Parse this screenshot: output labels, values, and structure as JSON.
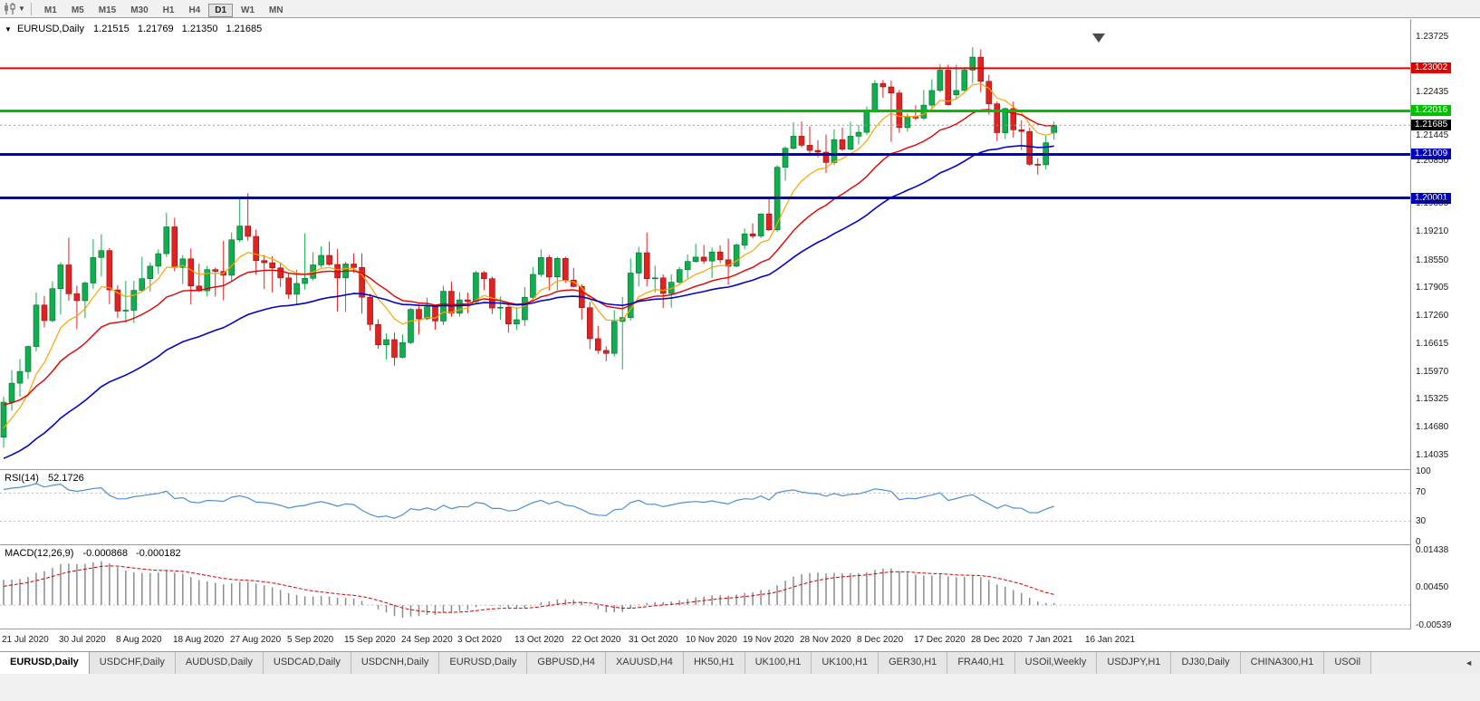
{
  "toolbar": {
    "timeframes": [
      "M1",
      "M5",
      "M15",
      "M30",
      "H1",
      "H4",
      "D1",
      "W1",
      "MN"
    ],
    "active_timeframe": "D1"
  },
  "chart_header": {
    "collapse_icon": "▼",
    "symbol": "EURUSD,Daily",
    "open": "1.21515",
    "high": "1.21769",
    "low": "1.21350",
    "close": "1.21685"
  },
  "price_axis": {
    "tick_labels": [
      "1.23725",
      "1.22435",
      "1.21445",
      "1.20850",
      "1.19855",
      "1.19210",
      "1.18550",
      "1.17905",
      "1.17260",
      "1.16615",
      "1.15970",
      "1.15325",
      "1.14680",
      "1.14035"
    ]
  },
  "rsi_pane": {
    "title": "RSI(14)",
    "value": "52.1726",
    "period": 14,
    "axis_labels": [
      "100",
      "70",
      "30",
      "0"
    ],
    "guide_levels": [
      70,
      30
    ],
    "line_color": "#4f8fd0",
    "ylim": [
      0,
      100
    ]
  },
  "macd_pane": {
    "title": "MACD(12,26,9)",
    "macd_value": "-0.000868",
    "signal_value": "-0.000182",
    "axis_labels": [
      "0.01438",
      "0.00450",
      "-0.00539"
    ],
    "hist_color": "#8c8c8c",
    "signal_color": "#d00000",
    "fast_period": 12,
    "slow_period": 26,
    "signal_period": 9,
    "fast_seed": 1.15,
    "slow_seed": 1.143,
    "signal_seed": 0.0045,
    "ylim": [
      -0.0062,
      0.0158
    ]
  },
  "date_axis": {
    "labels": [
      "21 Jul 2020",
      "30 Jul 2020",
      "8 Aug 2020",
      "18 Aug 2020",
      "27 Aug 2020",
      "5 Sep 2020",
      "15 Sep 2020",
      "24 Sep 2020",
      "3 Oct 2020",
      "13 Oct 2020",
      "22 Oct 2020",
      "31 Oct 2020",
      "10 Nov 2020",
      "19 Nov 2020",
      "28 Nov 2020",
      "8 Dec 2020",
      "17 Dec 2020",
      "28 Dec 2020",
      "7 Jan 2021",
      "16 Jan 2021"
    ]
  },
  "tab_bar": {
    "scroll_left_icon": "◄",
    "tabs": [
      {
        "label": "EURUSD,Daily",
        "active": true
      },
      {
        "label": "USDCHF,Daily",
        "active": false
      },
      {
        "label": "AUDUSD,Daily",
        "active": false
      },
      {
        "label": "USDCAD,Daily",
        "active": false
      },
      {
        "label": "USDCNH,Daily",
        "active": false
      },
      {
        "label": "EURUSD,Daily",
        "active": false
      },
      {
        "label": "GBPUSD,H4",
        "active": false
      },
      {
        "label": "XAUUSD,H4",
        "active": false
      },
      {
        "label": "HK50,H1",
        "active": false
      },
      {
        "label": "UK100,H1",
        "active": false
      },
      {
        "label": "UK100,H1",
        "active": false
      },
      {
        "label": "GER30,H1",
        "active": false
      },
      {
        "label": "FRA40,H1",
        "active": false
      },
      {
        "label": "USOil,Weekly",
        "active": false
      },
      {
        "label": "USDJPY,H1",
        "active": false
      },
      {
        "label": "DJ30,Daily",
        "active": false
      },
      {
        "label": "CHINA300,H1",
        "active": false
      },
      {
        "label": "USOil",
        "active": false
      }
    ]
  },
  "chart_data": {
    "type": "candlestick",
    "symbol": "EURUSD",
    "timeframe": "Daily",
    "ylim": [
      1.1372,
      1.24144
    ],
    "colors": {
      "bull": "#0fae4e",
      "bear": "#e22121",
      "bull_border": "#056a2e",
      "bear_border": "#8f0f0f"
    },
    "levels": [
      {
        "label": "1.23002",
        "price": 1.23002,
        "color": "#e00000",
        "line_width": 2,
        "kind": "resistance"
      },
      {
        "label": "1.22016",
        "price": 1.22016,
        "color": "#00bf00",
        "line_width": 3,
        "kind": "resistance2"
      },
      {
        "label": "1.21685",
        "price": 1.21685,
        "color": "#000000",
        "line_width": 1,
        "kind": "bid-price"
      },
      {
        "label": "1.21009",
        "price": 1.21009,
        "color": "#0000c0",
        "line_width": 3,
        "kind": "support"
      },
      {
        "label": "1.20001",
        "price": 1.20001,
        "color": "#0000c0",
        "line_width": 3,
        "kind": "support2"
      }
    ],
    "moving_averages": [
      {
        "name": "fast-ma",
        "period": 8,
        "seed": 1.145,
        "color": "#ffa200",
        "width": 1.2
      },
      {
        "name": "medium-ma",
        "period": 20,
        "seed": 1.152,
        "color": "#e00000",
        "width": 1.4
      },
      {
        "name": "slow-ma",
        "period": 40,
        "seed": 1.139,
        "color": "#0202c8",
        "width": 1.6
      }
    ],
    "x_label_interval": 7,
    "dates": [
      "2020-07-21",
      "2020-07-22",
      "2020-07-23",
      "2020-07-24",
      "2020-07-27",
      "2020-07-28",
      "2020-07-29",
      "2020-07-30",
      "2020-07-31",
      "2020-08-03",
      "2020-08-04",
      "2020-08-05",
      "2020-08-06",
      "2020-08-07",
      "2020-08-10",
      "2020-08-11",
      "2020-08-12",
      "2020-08-13",
      "2020-08-14",
      "2020-08-17",
      "2020-08-18",
      "2020-08-19",
      "2020-08-20",
      "2020-08-21",
      "2020-08-24",
      "2020-08-25",
      "2020-08-26",
      "2020-08-27",
      "2020-08-28",
      "2020-08-31",
      "2020-09-01",
      "2020-09-02",
      "2020-09-03",
      "2020-09-04",
      "2020-09-07",
      "2020-09-08",
      "2020-09-09",
      "2020-09-10",
      "2020-09-11",
      "2020-09-14",
      "2020-09-15",
      "2020-09-16",
      "2020-09-17",
      "2020-09-18",
      "2020-09-21",
      "2020-09-22",
      "2020-09-23",
      "2020-09-24",
      "2020-09-25",
      "2020-09-28",
      "2020-09-29",
      "2020-09-30",
      "2020-10-01",
      "2020-10-02",
      "2020-10-05",
      "2020-10-06",
      "2020-10-07",
      "2020-10-08",
      "2020-10-09",
      "2020-10-12",
      "2020-10-13",
      "2020-10-14",
      "2020-10-15",
      "2020-10-16",
      "2020-10-19",
      "2020-10-20",
      "2020-10-21",
      "2020-10-22",
      "2020-10-23",
      "2020-10-26",
      "2020-10-27",
      "2020-10-28",
      "2020-10-29",
      "2020-10-30",
      "2020-11-02",
      "2020-11-03",
      "2020-11-04",
      "2020-11-05",
      "2020-11-06",
      "2020-11-09",
      "2020-11-10",
      "2020-11-11",
      "2020-11-12",
      "2020-11-13",
      "2020-11-16",
      "2020-11-17",
      "2020-11-18",
      "2020-11-19",
      "2020-11-20",
      "2020-11-23",
      "2020-11-24",
      "2020-11-25",
      "2020-11-26",
      "2020-11-27",
      "2020-11-30",
      "2020-12-01",
      "2020-12-02",
      "2020-12-03",
      "2020-12-04",
      "2020-12-07",
      "2020-12-08",
      "2020-12-09",
      "2020-12-10",
      "2020-12-11",
      "2020-12-14",
      "2020-12-15",
      "2020-12-16",
      "2020-12-17",
      "2020-12-18",
      "2020-12-21",
      "2020-12-22",
      "2020-12-23",
      "2020-12-24",
      "2020-12-28",
      "2020-12-29",
      "2020-12-30",
      "2020-12-31",
      "2021-01-04",
      "2021-01-05",
      "2021-01-06",
      "2021-01-07",
      "2021-01-08",
      "2021-01-11",
      "2021-01-12",
      "2021-01-13",
      "2021-01-14",
      "2021-01-15",
      "2021-01-18",
      "2021-01-19",
      "2021-01-20"
    ],
    "candles": [
      [
        1.1446,
        1.154,
        1.1422,
        1.1527
      ],
      [
        1.1527,
        1.1601,
        1.1507,
        1.1571
      ],
      [
        1.1571,
        1.1627,
        1.154,
        1.1598
      ],
      [
        1.1598,
        1.1658,
        1.1581,
        1.1656
      ],
      [
        1.1656,
        1.1781,
        1.1644,
        1.1752
      ],
      [
        1.1752,
        1.1773,
        1.17,
        1.1716
      ],
      [
        1.1716,
        1.1807,
        1.1712,
        1.179
      ],
      [
        1.179,
        1.1851,
        1.173,
        1.1845
      ],
      [
        1.1845,
        1.1908,
        1.1762,
        1.1778
      ],
      [
        1.1778,
        1.1797,
        1.1696,
        1.1762
      ],
      [
        1.1762,
        1.1807,
        1.1722,
        1.1803
      ],
      [
        1.1803,
        1.1905,
        1.179,
        1.1862
      ],
      [
        1.1862,
        1.1916,
        1.1818,
        1.1878
      ],
      [
        1.1878,
        1.1884,
        1.1754,
        1.1787
      ],
      [
        1.1787,
        1.1798,
        1.1722,
        1.1738
      ],
      [
        1.1738,
        1.1808,
        1.1711,
        1.174
      ],
      [
        1.174,
        1.1808,
        1.171,
        1.1786
      ],
      [
        1.1786,
        1.1864,
        1.1782,
        1.1813
      ],
      [
        1.1813,
        1.1851,
        1.1783,
        1.1842
      ],
      [
        1.1842,
        1.1881,
        1.1824,
        1.1871
      ],
      [
        1.1871,
        1.1966,
        1.1863,
        1.1933
      ],
      [
        1.1933,
        1.1954,
        1.183,
        1.1839
      ],
      [
        1.1839,
        1.1868,
        1.1801,
        1.1859
      ],
      [
        1.1859,
        1.1883,
        1.1753,
        1.1796
      ],
      [
        1.1796,
        1.1848,
        1.1782,
        1.1785
      ],
      [
        1.1785,
        1.1843,
        1.1772,
        1.1834
      ],
      [
        1.1834,
        1.1839,
        1.1772,
        1.183
      ],
      [
        1.183,
        1.1901,
        1.1763,
        1.1821
      ],
      [
        1.1821,
        1.192,
        1.1808,
        1.1903
      ],
      [
        1.1903,
        1.1997,
        1.1898,
        1.1935
      ],
      [
        1.1935,
        1.2011,
        1.1901,
        1.1911
      ],
      [
        1.1911,
        1.1927,
        1.1822,
        1.1855
      ],
      [
        1.1855,
        1.1868,
        1.1789,
        1.185
      ],
      [
        1.185,
        1.1865,
        1.1781,
        1.1838
      ],
      [
        1.1838,
        1.1848,
        1.1794,
        1.1815
      ],
      [
        1.1815,
        1.1827,
        1.1766,
        1.1777
      ],
      [
        1.1777,
        1.1834,
        1.1753,
        1.1802
      ],
      [
        1.1802,
        1.1918,
        1.1788,
        1.1814
      ],
      [
        1.1814,
        1.1874,
        1.1809,
        1.1845
      ],
      [
        1.1845,
        1.1888,
        1.1839,
        1.1867
      ],
      [
        1.1867,
        1.1899,
        1.1843,
        1.1846
      ],
      [
        1.1846,
        1.1882,
        1.1737,
        1.1815
      ],
      [
        1.1815,
        1.1852,
        1.1736,
        1.1847
      ],
      [
        1.1847,
        1.1872,
        1.1827,
        1.1839
      ],
      [
        1.1839,
        1.1872,
        1.1732,
        1.177
      ],
      [
        1.177,
        1.1778,
        1.1693,
        1.1707
      ],
      [
        1.1707,
        1.1719,
        1.1651,
        1.166
      ],
      [
        1.166,
        1.1686,
        1.1626,
        1.1672
      ],
      [
        1.1672,
        1.1688,
        1.1612,
        1.1631
      ],
      [
        1.1631,
        1.1684,
        1.1628,
        1.1665
      ],
      [
        1.1665,
        1.1745,
        1.1662,
        1.1742
      ],
      [
        1.1742,
        1.1755,
        1.1684,
        1.172
      ],
      [
        1.172,
        1.1769,
        1.1717,
        1.1748
      ],
      [
        1.1748,
        1.1752,
        1.1695,
        1.1715
      ],
      [
        1.1715,
        1.1797,
        1.1706,
        1.1784
      ],
      [
        1.1784,
        1.1806,
        1.1725,
        1.1733
      ],
      [
        1.1733,
        1.1782,
        1.1725,
        1.1764
      ],
      [
        1.1764,
        1.1781,
        1.1733,
        1.176
      ],
      [
        1.176,
        1.1831,
        1.1754,
        1.1827
      ],
      [
        1.1827,
        1.1831,
        1.1786,
        1.1813
      ],
      [
        1.1813,
        1.1818,
        1.1731,
        1.1745
      ],
      [
        1.1745,
        1.1772,
        1.1718,
        1.1747
      ],
      [
        1.1747,
        1.1758,
        1.1688,
        1.1708
      ],
      [
        1.1708,
        1.1747,
        1.1694,
        1.1718
      ],
      [
        1.1718,
        1.1794,
        1.1703,
        1.177
      ],
      [
        1.177,
        1.184,
        1.1761,
        1.1823
      ],
      [
        1.1823,
        1.1881,
        1.1817,
        1.1862
      ],
      [
        1.1862,
        1.1868,
        1.1786,
        1.1817
      ],
      [
        1.1817,
        1.1864,
        1.1787,
        1.186
      ],
      [
        1.186,
        1.1864,
        1.1803,
        1.181
      ],
      [
        1.181,
        1.1838,
        1.1793,
        1.1795
      ],
      [
        1.1795,
        1.18,
        1.1718,
        1.1746
      ],
      [
        1.1746,
        1.1759,
        1.165,
        1.1674
      ],
      [
        1.1674,
        1.1704,
        1.1639,
        1.1647
      ],
      [
        1.1647,
        1.1656,
        1.1622,
        1.164
      ],
      [
        1.164,
        1.174,
        1.1633,
        1.1714
      ],
      [
        1.1714,
        1.1771,
        1.1603,
        1.1723
      ],
      [
        1.1723,
        1.186,
        1.1716,
        1.1826
      ],
      [
        1.1826,
        1.1887,
        1.1795,
        1.1873
      ],
      [
        1.1873,
        1.192,
        1.1795,
        1.1813
      ],
      [
        1.1813,
        1.1843,
        1.1781,
        1.1815
      ],
      [
        1.1815,
        1.1823,
        1.1745,
        1.1779
      ],
      [
        1.1779,
        1.1823,
        1.1746,
        1.1805
      ],
      [
        1.1805,
        1.184,
        1.1799,
        1.1834
      ],
      [
        1.1834,
        1.1869,
        1.1814,
        1.1853
      ],
      [
        1.1853,
        1.1894,
        1.185,
        1.1863
      ],
      [
        1.1863,
        1.1891,
        1.1847,
        1.1854
      ],
      [
        1.1854,
        1.1885,
        1.1815,
        1.1875
      ],
      [
        1.1875,
        1.189,
        1.1849,
        1.1857
      ],
      [
        1.1857,
        1.1906,
        1.1799,
        1.1842
      ],
      [
        1.1842,
        1.1895,
        1.184,
        1.1891
      ],
      [
        1.1891,
        1.1929,
        1.1881,
        1.1917
      ],
      [
        1.1917,
        1.1941,
        1.1906,
        1.1912
      ],
      [
        1.1912,
        1.1964,
        1.1907,
        1.1963
      ],
      [
        1.1963,
        1.2003,
        1.1924,
        1.1926
      ],
      [
        1.1926,
        1.2076,
        1.1922,
        1.2071
      ],
      [
        1.2071,
        1.2119,
        1.204,
        1.2115
      ],
      [
        1.2115,
        1.2175,
        1.2112,
        1.2143
      ],
      [
        1.2143,
        1.2177,
        1.2117,
        1.2122
      ],
      [
        1.2122,
        1.2166,
        1.2097,
        1.211
      ],
      [
        1.211,
        1.2134,
        1.2094,
        1.2106
      ],
      [
        1.2106,
        1.2147,
        1.2058,
        1.2082
      ],
      [
        1.2082,
        1.2159,
        1.2076,
        1.2135
      ],
      [
        1.2135,
        1.2163,
        1.2109,
        1.2113
      ],
      [
        1.2113,
        1.2176,
        1.211,
        1.2143
      ],
      [
        1.2143,
        1.2169,
        1.2124,
        1.2152
      ],
      [
        1.2152,
        1.2212,
        1.2146,
        1.2199
      ],
      [
        1.2199,
        1.2273,
        1.2197,
        1.2265
      ],
      [
        1.2265,
        1.2273,
        1.2232,
        1.2257
      ],
      [
        1.2257,
        1.2272,
        1.213,
        1.2243
      ],
      [
        1.2243,
        1.225,
        1.2151,
        1.2163
      ],
      [
        1.2163,
        1.2196,
        1.2154,
        1.2189
      ],
      [
        1.2189,
        1.2215,
        1.218,
        1.2185
      ],
      [
        1.2185,
        1.225,
        1.2181,
        1.2215
      ],
      [
        1.2215,
        1.2275,
        1.2208,
        1.2249
      ],
      [
        1.2249,
        1.231,
        1.2245,
        1.2296
      ],
      [
        1.2296,
        1.2309,
        1.2214,
        1.2216
      ],
      [
        1.2239,
        1.2309,
        1.2228,
        1.2249
      ],
      [
        1.2249,
        1.2303,
        1.2247,
        1.2296
      ],
      [
        1.2296,
        1.2349,
        1.2266,
        1.2326
      ],
      [
        1.2326,
        1.2344,
        1.2245,
        1.227
      ],
      [
        1.227,
        1.2285,
        1.2193,
        1.2218
      ],
      [
        1.2218,
        1.2223,
        1.2132,
        1.2151
      ],
      [
        1.2151,
        1.2209,
        1.2137,
        1.2207
      ],
      [
        1.2207,
        1.2223,
        1.214,
        1.2158
      ],
      [
        1.2158,
        1.218,
        1.2111,
        1.2154
      ],
      [
        1.2154,
        1.2163,
        1.2075,
        1.2078
      ],
      [
        1.2078,
        1.2092,
        1.2054,
        1.2077
      ],
      [
        1.2077,
        1.2144,
        1.2066,
        1.2128
      ],
      [
        1.21515,
        1.21769,
        1.2135,
        1.21685
      ]
    ]
  }
}
